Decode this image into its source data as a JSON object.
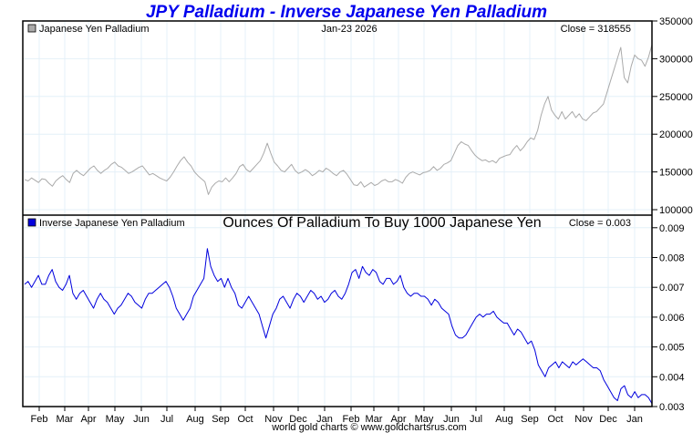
{
  "chart_data": [
    {
      "type": "line",
      "title": "JPY Palladium - Inverse Japanese Yen Palladium",
      "panel_label": "Japanese Yen Palladium",
      "date_label": "Jan-23  2026",
      "close_label": "Close = 318555",
      "series": [
        {
          "name": "Japanese Yen Palladium",
          "color": "#aaaaaa",
          "values": [
            140000,
            138000,
            142000,
            139000,
            136000,
            141000,
            140000,
            135000,
            131000,
            138000,
            142000,
            145000,
            140000,
            136000,
            148000,
            152000,
            148000,
            145000,
            150000,
            155000,
            158000,
            152000,
            148000,
            152000,
            155000,
            160000,
            163000,
            158000,
            156000,
            152000,
            148000,
            150000,
            153000,
            156000,
            158000,
            152000,
            146000,
            148000,
            145000,
            142000,
            140000,
            138000,
            143000,
            150000,
            158000,
            165000,
            170000,
            163000,
            158000,
            150000,
            145000,
            141000,
            137000,
            120000,
            130000,
            135000,
            138000,
            137000,
            142000,
            137000,
            142000,
            148000,
            157000,
            160000,
            153000,
            150000,
            155000,
            160000,
            165000,
            175000,
            188000,
            175000,
            163000,
            158000,
            152000,
            150000,
            155000,
            160000,
            152000,
            148000,
            150000,
            153000,
            150000,
            145000,
            148000,
            152000,
            150000,
            155000,
            152000,
            148000,
            145000,
            150000,
            152000,
            147000,
            140000,
            133000,
            132000,
            137000,
            130000,
            133000,
            136000,
            132000,
            134000,
            138000,
            140000,
            137000,
            137000,
            140000,
            138000,
            135000,
            143000,
            148000,
            150000,
            148000,
            146000,
            149000,
            150000,
            152000,
            157000,
            152000,
            155000,
            160000,
            162000,
            165000,
            175000,
            185000,
            190000,
            187000,
            185000,
            178000,
            172000,
            168000,
            165000,
            166000,
            163000,
            165000,
            162000,
            168000,
            170000,
            172000,
            173000,
            180000,
            185000,
            178000,
            183000,
            190000,
            195000,
            193000,
            205000,
            225000,
            240000,
            250000,
            232000,
            225000,
            220000,
            230000,
            220000,
            225000,
            230000,
            222000,
            227000,
            220000,
            218000,
            223000,
            228000,
            230000,
            235000,
            240000,
            255000,
            270000,
            285000,
            300000,
            315000,
            275000,
            268000,
            290000,
            305000,
            300000,
            298000,
            290000,
            302000,
            318555
          ]
        }
      ],
      "y_ticks": [
        "350000",
        "300000",
        "250000",
        "200000",
        "150000",
        "100000"
      ],
      "ylim": [
        100000,
        350000
      ]
    },
    {
      "type": "line",
      "panel_label": "Inverse Japanese Yen Palladium",
      "subtitle": "Ounces Of Palladium To Buy 1000 Japanese Yen",
      "close_label": "Close = 0.003",
      "series": [
        {
          "name": "Inverse Japanese Yen Palladium",
          "color": "#0000dd",
          "values": [
            0.0071,
            0.0072,
            0.007,
            0.0072,
            0.0074,
            0.0071,
            0.0071,
            0.0074,
            0.0076,
            0.0072,
            0.007,
            0.0069,
            0.0071,
            0.0074,
            0.0068,
            0.0066,
            0.0068,
            0.0069,
            0.0067,
            0.0065,
            0.0063,
            0.0066,
            0.0068,
            0.0066,
            0.0065,
            0.0063,
            0.0061,
            0.0063,
            0.0064,
            0.0066,
            0.0068,
            0.0067,
            0.0065,
            0.0064,
            0.0063,
            0.0066,
            0.0068,
            0.0068,
            0.0069,
            0.007,
            0.0071,
            0.0072,
            0.007,
            0.0067,
            0.0063,
            0.0061,
            0.0059,
            0.0061,
            0.0063,
            0.0067,
            0.0069,
            0.0071,
            0.0073,
            0.0083,
            0.0077,
            0.0074,
            0.0072,
            0.0073,
            0.007,
            0.0073,
            0.007,
            0.0068,
            0.0064,
            0.0063,
            0.0065,
            0.0067,
            0.0065,
            0.0063,
            0.0061,
            0.0057,
            0.0053,
            0.0057,
            0.0061,
            0.0063,
            0.0066,
            0.0067,
            0.0065,
            0.0063,
            0.0066,
            0.0068,
            0.0067,
            0.0065,
            0.0067,
            0.0069,
            0.0068,
            0.0066,
            0.0067,
            0.0065,
            0.0066,
            0.0068,
            0.0069,
            0.0067,
            0.0066,
            0.0068,
            0.0071,
            0.0075,
            0.0076,
            0.0073,
            0.0077,
            0.0075,
            0.0074,
            0.0076,
            0.0075,
            0.0072,
            0.0071,
            0.0073,
            0.0073,
            0.0071,
            0.0072,
            0.0074,
            0.007,
            0.0068,
            0.0067,
            0.0068,
            0.0068,
            0.0067,
            0.0067,
            0.0066,
            0.0064,
            0.0066,
            0.0065,
            0.0063,
            0.0062,
            0.0061,
            0.0057,
            0.0054,
            0.0053,
            0.0053,
            0.0054,
            0.0056,
            0.0058,
            0.006,
            0.0061,
            0.006,
            0.0061,
            0.0061,
            0.0062,
            0.006,
            0.0059,
            0.0058,
            0.0058,
            0.0056,
            0.0054,
            0.0056,
            0.0055,
            0.0053,
            0.0051,
            0.0052,
            0.0049,
            0.0044,
            0.0042,
            0.004,
            0.0043,
            0.0044,
            0.0045,
            0.0043,
            0.0045,
            0.0044,
            0.0043,
            0.0045,
            0.0044,
            0.0045,
            0.0046,
            0.0045,
            0.0044,
            0.0043,
            0.0043,
            0.0042,
            0.0039,
            0.0037,
            0.0035,
            0.0033,
            0.0032,
            0.0036,
            0.0037,
            0.0034,
            0.0033,
            0.0035,
            0.0033,
            0.0034,
            0.0034,
            0.0033,
            0.0031
          ]
        }
      ],
      "y_ticks": [
        "0.009",
        "0.008",
        "0.007",
        "0.006",
        "0.005",
        "0.004",
        "0.003"
      ],
      "ylim": [
        0.003,
        0.0094
      ]
    }
  ],
  "x_axis": {
    "month_labels": [
      "Feb",
      "Mar",
      "Apr",
      "May",
      "Jun",
      "Jul",
      "Aug",
      "Sep",
      "Oct",
      "Nov",
      "Dec",
      "Jan",
      "Feb",
      "Mar",
      "Apr",
      "May",
      "Jun",
      "Jul",
      "Aug",
      "Sep",
      "Oct",
      "Nov",
      "Dec",
      "Jan"
    ]
  },
  "credit": "world gold charts © www.goldchartsrus.com"
}
